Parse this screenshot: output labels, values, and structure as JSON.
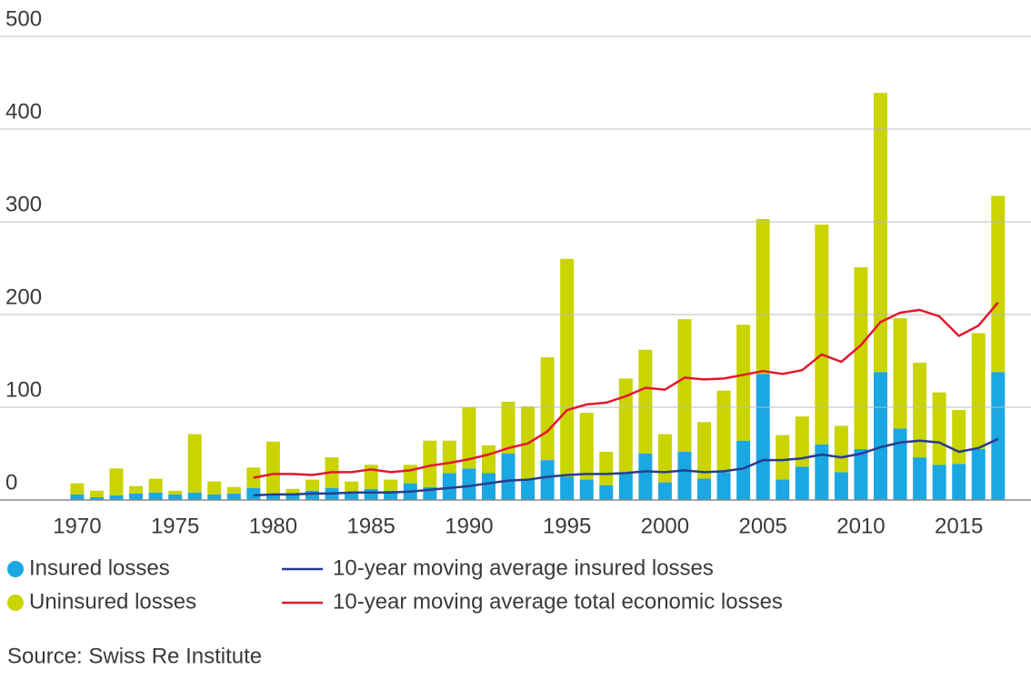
{
  "chart_data": {
    "type": "bar",
    "stacked": true,
    "source": "Source: Swiss Re Institute",
    "x": [
      1970,
      1971,
      1972,
      1973,
      1974,
      1975,
      1976,
      1977,
      1978,
      1979,
      1980,
      1981,
      1982,
      1983,
      1984,
      1985,
      1986,
      1987,
      1988,
      1989,
      1990,
      1991,
      1992,
      1993,
      1994,
      1995,
      1996,
      1997,
      1998,
      1999,
      2000,
      2001,
      2002,
      2003,
      2004,
      2005,
      2006,
      2007,
      2008,
      2009,
      2010,
      2011,
      2012,
      2013,
      2014,
      2015,
      2016,
      2017
    ],
    "xlim": [
      1966.06,
      2018.68
    ],
    "xticks": [
      1970,
      1975,
      1980,
      1985,
      1990,
      1995,
      2000,
      2005,
      2010,
      2015
    ],
    "ylim": [
      0,
      500
    ],
    "yticks": [
      0,
      100,
      200,
      300,
      400,
      500
    ],
    "grid": true,
    "series": [
      {
        "name": "Insured losses",
        "type": "bar",
        "color": "#1ba7e1",
        "values": [
          6,
          3,
          5,
          7,
          8,
          6,
          8,
          6,
          7,
          13,
          7,
          7,
          10,
          13,
          9,
          12,
          10,
          18,
          14,
          29,
          34,
          29,
          50,
          22,
          43,
          25,
          22,
          16,
          30,
          50,
          19,
          52,
          23,
          30,
          64,
          136,
          22,
          36,
          60,
          30,
          55,
          138,
          77,
          46,
          38,
          39,
          55,
          138
        ]
      },
      {
        "name": "Uninsured losses",
        "type": "bar",
        "color": "#c9d400",
        "values": [
          12,
          7,
          29,
          8,
          15,
          4,
          63,
          14,
          7,
          22,
          56,
          5,
          12,
          33,
          11,
          26,
          12,
          20,
          50,
          35,
          66,
          30,
          56,
          79,
          111,
          235,
          72,
          36,
          101,
          112,
          52,
          143,
          61,
          88,
          125,
          167,
          48,
          54,
          237,
          50,
          196,
          301,
          119,
          102,
          78,
          58,
          125,
          190
        ]
      },
      {
        "name": "10-year moving average insured losses",
        "type": "line",
        "color": "#283c8e",
        "values": [
          null,
          null,
          null,
          null,
          null,
          null,
          null,
          null,
          null,
          5,
          6,
          6,
          7,
          7,
          8,
          8,
          8,
          9,
          11,
          13,
          15,
          18,
          21,
          22,
          25,
          27,
          28,
          28,
          29,
          31,
          30,
          32,
          30,
          31,
          34,
          43,
          43,
          45,
          49,
          46,
          50,
          57,
          62,
          64,
          62,
          52,
          56,
          66
        ]
      },
      {
        "name": "10-year moving average total economic losses",
        "type": "line",
        "color": "#e3182d",
        "values": [
          null,
          null,
          null,
          null,
          null,
          null,
          null,
          null,
          null,
          24,
          28,
          28,
          27,
          30,
          30,
          33,
          30,
          32,
          37,
          40,
          44,
          49,
          56,
          61,
          74,
          97,
          103,
          105,
          112,
          121,
          119,
          132,
          130,
          131,
          135,
          139,
          136,
          140,
          157,
          149,
          167,
          192,
          202,
          205,
          198,
          177,
          188,
          213
        ]
      }
    ]
  }
}
